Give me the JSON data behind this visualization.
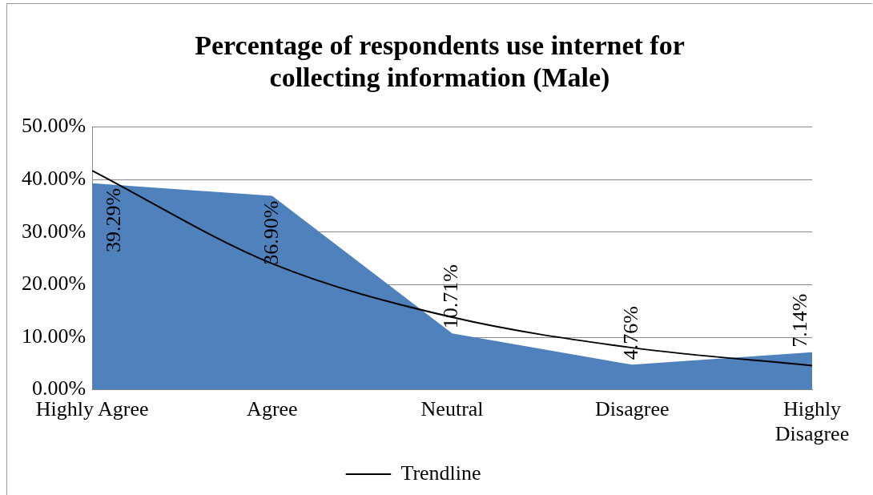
{
  "chart_data": {
    "type": "area",
    "title": "Percentage of respondents use internet for collecting information (Male)",
    "categories": [
      "Highly Agree",
      "Agree",
      "Neutral",
      "Disagree",
      "Highly Disagree"
    ],
    "series": [
      {
        "color": "#4f81bd",
        "values": [
          39.29,
          36.9,
          10.71,
          4.76,
          7.14
        ],
        "value_labels": [
          "39.29%",
          "36.90%",
          "10.71%",
          "4.76%",
          "7.14%"
        ]
      },
      {
        "type": "line",
        "name": "Trendline",
        "color": "#000000",
        "values": [
          41.7,
          24.0,
          13.8,
          8.0,
          4.6
        ]
      }
    ],
    "ylim": [
      0,
      50
    ],
    "yticks": [
      {
        "value": 0,
        "label": "0.00%"
      },
      {
        "value": 10,
        "label": "10.00%"
      },
      {
        "value": 20,
        "label": "20.00%"
      },
      {
        "value": 30,
        "label": "30.00%"
      },
      {
        "value": 40,
        "label": "40.00%"
      },
      {
        "value": 50,
        "label": "50.00%"
      }
    ],
    "grid": "y",
    "legend": "bottom",
    "marker": "none",
    "line_style": "solid"
  }
}
